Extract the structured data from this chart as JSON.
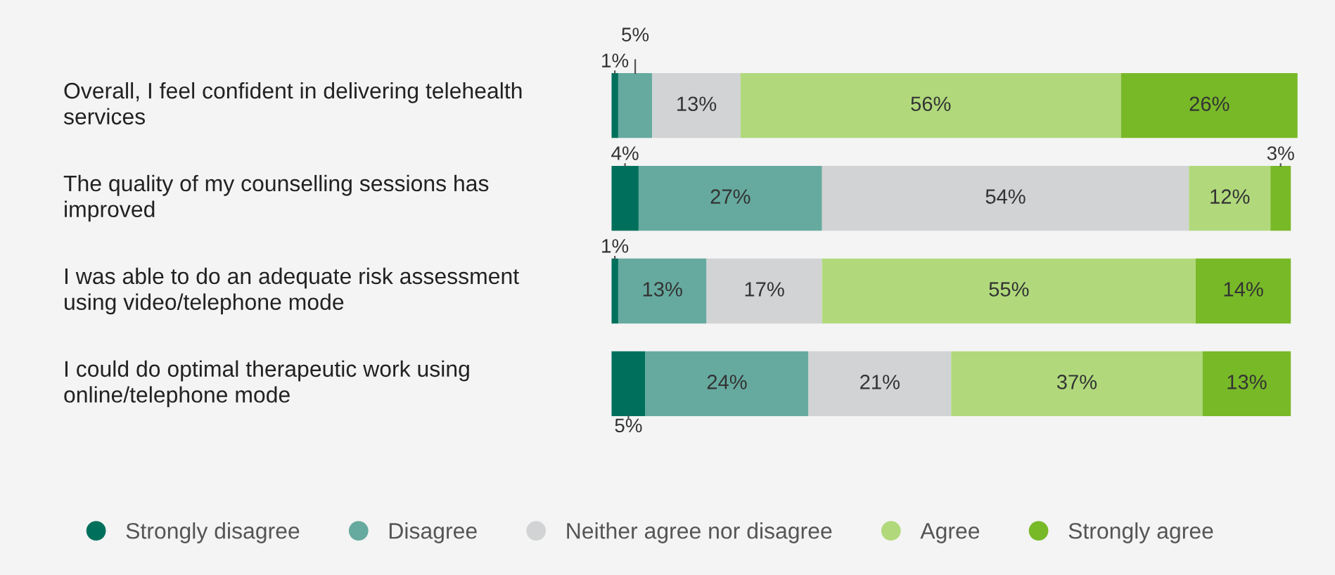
{
  "chart_data": {
    "type": "bar",
    "orientation": "horizontal",
    "stacked": true,
    "legend": "bottom",
    "marker": "circle",
    "grid": false,
    "categories": [
      "Overall, I feel confident in delivering telehealth\nservices",
      "The quality of my counselling sessions has\nimproved",
      "I was able to do an adequate risk assessment\nusing video/telephone mode",
      "I could do optimal therapeutic work using\nonline/telephone mode"
    ],
    "series": [
      {
        "name": "Strongly disagree",
        "color": "#00705c",
        "values": [
          1,
          4,
          1,
          5
        ],
        "value_labels": [
          "1%",
          "4%",
          "1%",
          "5%"
        ]
      },
      {
        "name": "Disagree",
        "color": "#66aa9f",
        "values": [
          5,
          27,
          13,
          24
        ],
        "value_labels": [
          "5%",
          "27%",
          "13%",
          "24%"
        ]
      },
      {
        "name": "Neither agree nor disagree",
        "color": "#d1d3d4",
        "values": [
          13,
          54,
          17,
          21
        ],
        "value_labels": [
          "13%",
          "54%",
          "17%",
          "21%"
        ]
      },
      {
        "name": "Agree",
        "color": "#b1d97c",
        "values": [
          56,
          12,
          55,
          37
        ],
        "value_labels": [
          "56%",
          "12%",
          "55%",
          "37%"
        ]
      },
      {
        "name": "Strongly agree",
        "color": "#78b928",
        "values": [
          26,
          3,
          14,
          13
        ],
        "value_labels": [
          "26%",
          "3%",
          "14%",
          "13%"
        ]
      }
    ]
  }
}
